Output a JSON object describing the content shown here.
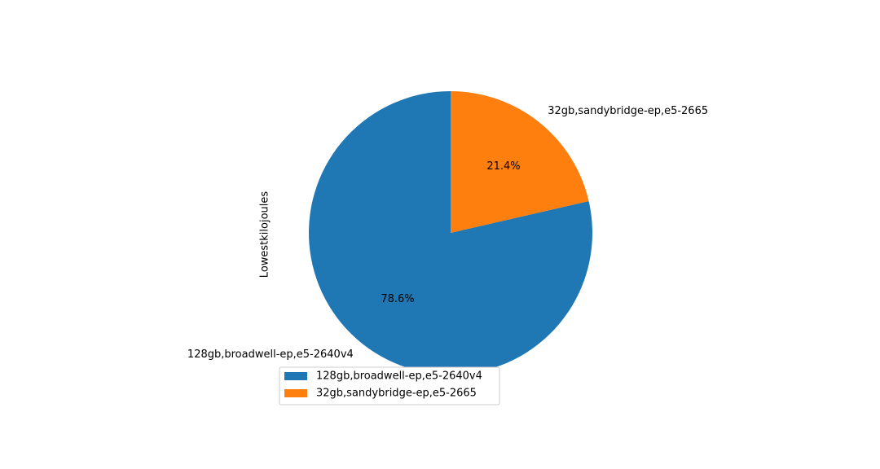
{
  "chart_data": {
    "type": "pie",
    "ylabel": "Lowestkilojoules",
    "slices": [
      {
        "label": "128gb,broadwell-ep,e5-2640v4",
        "value": 78.6,
        "pct_label": "78.6%",
        "color": "#1f77b4"
      },
      {
        "label": "32gb,sandybridge-ep,e5-2665",
        "value": 21.4,
        "pct_label": "21.4%",
        "color": "#ff7f0e"
      }
    ],
    "start_angle_deg": 90,
    "direction": "counterclockwise",
    "legend": {
      "position": "bottom-center",
      "entries": [
        "128gb,broadwell-ep,e5-2640v4",
        "32gb,sandybridge-ep,e5-2665"
      ]
    }
  }
}
